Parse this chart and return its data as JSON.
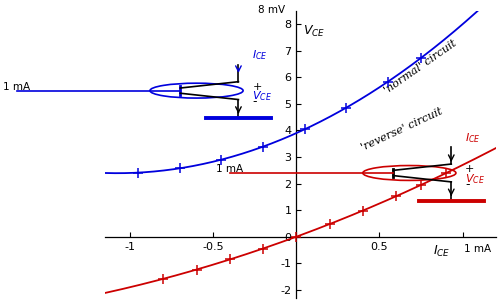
{
  "xlim": [
    -1.15,
    1.2
  ],
  "ylim": [
    -2.3,
    8.5
  ],
  "xticks": [
    -1,
    -0.5,
    0,
    0.5,
    1
  ],
  "yticks": [
    -2,
    -1,
    0,
    1,
    2,
    3,
    4,
    5,
    6,
    7,
    8
  ],
  "normal_color": "#0000dd",
  "reverse_color": "#cc0000",
  "normal_label": "'normal' circuit",
  "reverse_label": "'reverse' circuit",
  "bg_color": "#ffffff",
  "normal_curve": {
    "a": 3.9,
    "b": 2.8,
    "c": 1.3
  },
  "reverse_curve": {
    "a": 2.3,
    "b": 0.4
  },
  "normal_ticks_x": [
    -0.95,
    -0.7,
    -0.45,
    -0.2,
    0.05,
    0.3,
    0.55,
    0.75
  ],
  "reverse_ticks_x": [
    -0.8,
    -0.6,
    -0.4,
    -0.2,
    0.0,
    0.2,
    0.4,
    0.6,
    0.75,
    0.9
  ],
  "figsize": [
    5.0,
    3.02
  ],
  "dpi": 100
}
